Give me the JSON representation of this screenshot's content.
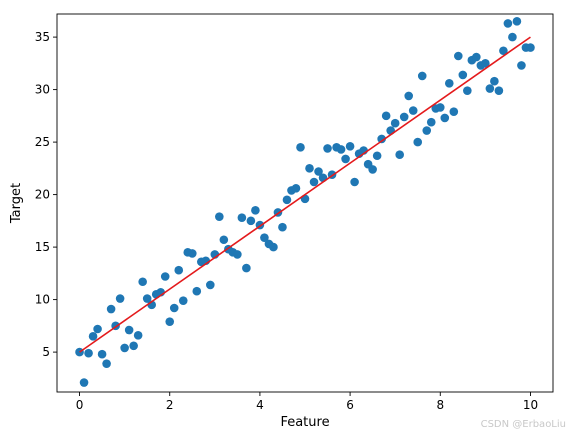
{
  "chart_data": {
    "type": "scatter",
    "title": "",
    "xlabel": "Feature",
    "ylabel": "Target",
    "xlim": [
      -0.5,
      10.5
    ],
    "ylim": [
      1.2,
      37.2
    ],
    "xticks": [
      0,
      2,
      4,
      6,
      8,
      10
    ],
    "yticks": [
      5,
      10,
      15,
      20,
      25,
      30,
      35
    ],
    "grid": false,
    "legend": "none",
    "colors": {
      "points": "#1f77b4",
      "fit_line": "#e41a1c"
    },
    "series": [
      {
        "kind": "points",
        "x": [
          0.0,
          0.1,
          0.2,
          0.3,
          0.4,
          0.5,
          0.6,
          0.7,
          0.8,
          0.9,
          1.0,
          1.1,
          1.2,
          1.3,
          1.4,
          1.5,
          1.6,
          1.7,
          1.8,
          1.9,
          2.0,
          2.1,
          2.2,
          2.3,
          2.4,
          2.5,
          2.6,
          2.7,
          2.8,
          2.9,
          3.0,
          3.1,
          3.2,
          3.3,
          3.4,
          3.5,
          3.6,
          3.7,
          3.8,
          3.9,
          4.0,
          4.1,
          4.2,
          4.3,
          4.4,
          4.5,
          4.6,
          4.7,
          4.8,
          4.9,
          5.0,
          5.1,
          5.2,
          5.3,
          5.4,
          5.5,
          5.6,
          5.7,
          5.8,
          5.9,
          6.0,
          6.1,
          6.2,
          6.3,
          6.4,
          6.5,
          6.6,
          6.7,
          6.8,
          6.9,
          7.0,
          7.1,
          7.2,
          7.3,
          7.4,
          7.5,
          7.6,
          7.7,
          7.8,
          7.9,
          8.0,
          8.1,
          8.2,
          8.3,
          8.4,
          8.5,
          8.6,
          8.7,
          8.8,
          8.9,
          9.0,
          9.1,
          9.2,
          9.3,
          9.4,
          9.5,
          9.6,
          9.7,
          9.8,
          9.9,
          10.0
        ],
        "y": [
          5.0,
          2.1,
          4.9,
          6.5,
          7.2,
          4.8,
          3.9,
          9.1,
          7.5,
          10.1,
          5.4,
          7.1,
          5.6,
          6.6,
          11.7,
          10.1,
          9.5,
          10.5,
          10.7,
          12.2,
          7.9,
          9.2,
          12.8,
          9.9,
          14.5,
          14.4,
          10.8,
          13.6,
          13.7,
          11.4,
          14.3,
          17.9,
          15.7,
          14.8,
          14.5,
          14.3,
          17.8,
          13.0,
          17.5,
          18.5,
          17.1,
          15.9,
          15.3,
          15.0,
          18.3,
          16.9,
          19.5,
          20.4,
          20.6,
          24.5,
          19.6,
          22.5,
          21.2,
          22.2,
          21.6,
          24.4,
          21.9,
          24.5,
          24.3,
          23.4,
          24.6,
          21.2,
          23.9,
          24.2,
          22.9,
          22.4,
          23.7,
          25.3,
          27.5,
          26.1,
          26.8,
          23.8,
          27.4,
          29.4,
          28.0,
          25.0,
          31.3,
          26.1,
          26.9,
          28.2,
          28.3,
          27.3,
          30.6,
          27.9,
          33.2,
          31.4,
          29.9,
          32.8,
          33.1,
          32.3,
          32.5,
          30.1,
          30.8,
          29.9,
          33.7,
          36.3,
          35.0,
          36.5,
          32.3,
          34.0,
          34.0
        ]
      },
      {
        "kind": "fit_line",
        "x": [
          0,
          10
        ],
        "y": [
          5.0,
          35.0
        ]
      }
    ]
  },
  "watermark": "CSDN @ErbaoLiu"
}
